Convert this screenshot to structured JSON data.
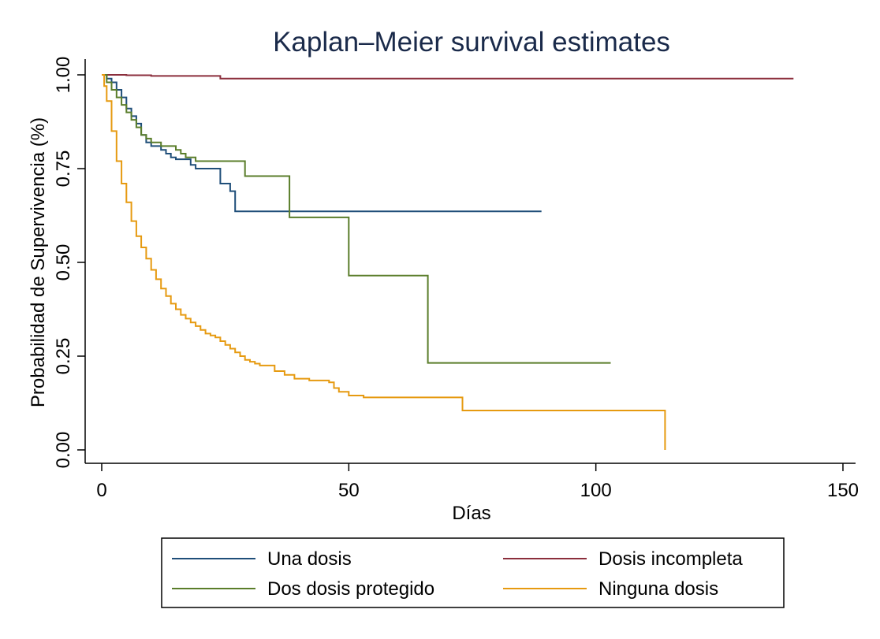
{
  "chart_data": {
    "type": "line",
    "title": "Kaplan–Meier survival estimates",
    "xlabel": "Días",
    "ylabel": "Probabilidad de Supervivencia (%)",
    "xlim": [
      0,
      150
    ],
    "ylim": [
      0,
      1
    ],
    "x_ticks": [
      "0",
      "50",
      "100",
      "150"
    ],
    "y_ticks": [
      "0.00",
      "0.25",
      "0.50",
      "0.75",
      "1.00"
    ],
    "grid": false,
    "legend_placement": "bottom",
    "colors": {
      "title": "#1a2a4a"
    },
    "series": [
      {
        "name": "Una dosis",
        "color": "#1f4e79",
        "x": [
          0,
          1,
          2,
          3,
          4,
          5,
          6,
          7,
          8,
          9,
          10,
          12,
          13,
          14,
          15,
          16,
          18,
          19,
          24,
          26,
          27,
          89
        ],
        "y": [
          1.0,
          0.99,
          0.98,
          0.96,
          0.94,
          0.91,
          0.89,
          0.87,
          0.84,
          0.82,
          0.81,
          0.8,
          0.79,
          0.78,
          0.775,
          0.775,
          0.76,
          0.75,
          0.71,
          0.69,
          0.636,
          0.636
        ]
      },
      {
        "name": "Dosis incompleta",
        "color": "#8b2e3c",
        "x": [
          0,
          5,
          10,
          24,
          140
        ],
        "y": [
          1.0,
          0.999,
          0.997,
          0.99,
          0.99
        ]
      },
      {
        "name": "Dos dosis protegido",
        "color": "#5a7d2a",
        "x": [
          0,
          1,
          2,
          3,
          4,
          5,
          6,
          7,
          8,
          9,
          10,
          12,
          15,
          16,
          17,
          19,
          29,
          38,
          50,
          66,
          103
        ],
        "y": [
          1.0,
          0.98,
          0.96,
          0.94,
          0.92,
          0.9,
          0.88,
          0.86,
          0.84,
          0.83,
          0.82,
          0.81,
          0.8,
          0.79,
          0.78,
          0.77,
          0.73,
          0.62,
          0.465,
          0.232,
          0.232
        ]
      },
      {
        "name": "Ninguna dosis",
        "color": "#e69a10",
        "x": [
          0,
          0.5,
          1,
          2,
          3,
          4,
          5,
          6,
          7,
          8,
          9,
          10,
          11,
          12,
          13,
          14,
          15,
          16,
          17,
          18,
          19,
          20,
          21,
          22,
          23,
          24,
          25,
          26,
          27,
          28,
          29,
          30,
          31,
          32,
          35,
          37,
          39,
          42,
          46,
          47,
          48,
          50,
          53,
          73,
          114,
          114
        ],
        "y": [
          1.0,
          0.97,
          0.93,
          0.85,
          0.77,
          0.71,
          0.66,
          0.61,
          0.57,
          0.54,
          0.51,
          0.48,
          0.455,
          0.43,
          0.41,
          0.39,
          0.375,
          0.36,
          0.35,
          0.34,
          0.33,
          0.32,
          0.31,
          0.305,
          0.3,
          0.29,
          0.28,
          0.27,
          0.26,
          0.25,
          0.24,
          0.235,
          0.23,
          0.225,
          0.21,
          0.2,
          0.19,
          0.185,
          0.18,
          0.165,
          0.155,
          0.145,
          0.14,
          0.105,
          0.105,
          0.0
        ]
      }
    ]
  }
}
